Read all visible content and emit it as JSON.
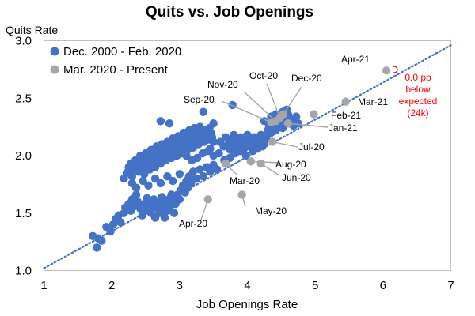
{
  "chart_data": {
    "type": "scatter",
    "title": "Quits vs. Job Openings",
    "ylabel": "Quits Rate",
    "xlabel": "Job Openings Rate",
    "xlim": [
      1,
      7
    ],
    "ylim": [
      1.0,
      3.0
    ],
    "x_ticks": [
      "1",
      "2",
      "3",
      "4",
      "5",
      "6",
      "7"
    ],
    "y_ticks": [
      "1.0",
      "1.5",
      "2.0",
      "2.5",
      "3.0"
    ],
    "legend_position": "top-left",
    "colors": {
      "history": "#4472c4",
      "recent": "#a6a6a6",
      "trend": "#4472c4",
      "note": "#ff0000"
    },
    "series": [
      {
        "name": "Dec. 2000 - Feb. 2020",
        "marker": "circle",
        "points": [
          [
            1.72,
            1.3
          ],
          [
            1.78,
            1.2
          ],
          [
            1.8,
            1.28
          ],
          [
            1.85,
            1.26
          ],
          [
            1.92,
            1.38
          ],
          [
            1.98,
            1.34
          ],
          [
            2.02,
            1.4
          ],
          [
            2.06,
            1.45
          ],
          [
            2.1,
            1.48
          ],
          [
            2.13,
            1.42
          ],
          [
            2.18,
            1.5
          ],
          [
            2.2,
            1.55
          ],
          [
            2.25,
            1.58
          ],
          [
            2.28,
            1.52
          ],
          [
            2.3,
            1.62
          ],
          [
            2.33,
            1.56
          ],
          [
            2.36,
            1.66
          ],
          [
            2.38,
            1.6
          ],
          [
            2.42,
            1.54
          ],
          [
            2.45,
            1.48
          ],
          [
            2.48,
            1.58
          ],
          [
            2.5,
            1.52
          ],
          [
            2.52,
            1.63
          ],
          [
            2.55,
            1.58
          ],
          [
            2.58,
            1.5
          ],
          [
            2.6,
            1.56
          ],
          [
            2.62,
            1.62
          ],
          [
            2.64,
            1.46
          ],
          [
            2.66,
            1.55
          ],
          [
            2.68,
            1.6
          ],
          [
            2.7,
            1.5
          ],
          [
            2.72,
            1.57
          ],
          [
            2.74,
            1.64
          ],
          [
            2.76,
            1.53
          ],
          [
            2.78,
            1.46
          ],
          [
            2.8,
            1.58
          ],
          [
            2.82,
            1.52
          ],
          [
            2.84,
            1.62
          ],
          [
            2.86,
            1.56
          ],
          [
            2.88,
            1.66
          ],
          [
            2.9,
            1.62
          ],
          [
            2.92,
            1.5
          ],
          [
            2.94,
            1.58
          ],
          [
            2.97,
            1.66
          ],
          [
            3.0,
            1.62
          ],
          [
            3.02,
            1.7
          ],
          [
            3.05,
            1.74
          ],
          [
            3.08,
            1.68
          ],
          [
            3.1,
            1.78
          ],
          [
            3.12,
            1.72
          ],
          [
            3.14,
            1.82
          ],
          [
            3.17,
            1.76
          ],
          [
            3.2,
            1.86
          ],
          [
            3.25,
            1.8
          ],
          [
            3.3,
            1.88
          ],
          [
            3.35,
            1.82
          ],
          [
            3.4,
            1.9
          ],
          [
            3.45,
            1.86
          ],
          [
            3.5,
            1.92
          ],
          [
            3.55,
            1.88
          ],
          [
            2.18,
            1.8
          ],
          [
            2.22,
            1.85
          ],
          [
            2.25,
            1.9
          ],
          [
            2.28,
            1.93
          ],
          [
            2.3,
            1.82
          ],
          [
            2.32,
            1.88
          ],
          [
            2.35,
            1.96
          ],
          [
            2.38,
            1.92
          ],
          [
            2.4,
            1.86
          ],
          [
            2.42,
            2.0
          ],
          [
            2.44,
            1.95
          ],
          [
            2.46,
            1.9
          ],
          [
            2.48,
            1.84
          ],
          [
            2.5,
            2.02
          ],
          [
            2.52,
            1.97
          ],
          [
            2.54,
            1.92
          ],
          [
            2.56,
            1.88
          ],
          [
            2.58,
            2.05
          ],
          [
            2.6,
            2.0
          ],
          [
            2.62,
            1.95
          ],
          [
            2.64,
            1.9
          ],
          [
            2.66,
            2.08
          ],
          [
            2.68,
            2.03
          ],
          [
            2.7,
            1.98
          ],
          [
            2.72,
            1.93
          ],
          [
            2.74,
            2.1
          ],
          [
            2.76,
            2.05
          ],
          [
            2.78,
            2.0
          ],
          [
            2.8,
            1.96
          ],
          [
            2.82,
            2.12
          ],
          [
            2.84,
            2.08
          ],
          [
            2.86,
            2.03
          ],
          [
            2.88,
            1.98
          ],
          [
            2.9,
            2.15
          ],
          [
            2.92,
            2.1
          ],
          [
            2.94,
            2.05
          ],
          [
            2.96,
            2.0
          ],
          [
            2.98,
            2.17
          ],
          [
            3.0,
            2.12
          ],
          [
            3.02,
            2.08
          ],
          [
            3.04,
            2.02
          ],
          [
            3.06,
            2.2
          ],
          [
            3.08,
            2.15
          ],
          [
            3.1,
            2.1
          ],
          [
            3.12,
            2.05
          ],
          [
            3.14,
            2.22
          ],
          [
            3.16,
            2.18
          ],
          [
            3.18,
            2.12
          ],
          [
            3.2,
            2.07
          ],
          [
            3.22,
            2.24
          ],
          [
            3.24,
            2.2
          ],
          [
            3.26,
            2.15
          ],
          [
            3.28,
            2.1
          ],
          [
            3.3,
            2.25
          ],
          [
            3.32,
            2.2
          ],
          [
            3.34,
            2.16
          ],
          [
            3.36,
            2.12
          ],
          [
            3.38,
            2.22
          ],
          [
            3.4,
            2.18
          ],
          [
            3.42,
            2.14
          ],
          [
            3.44,
            2.24
          ],
          [
            3.46,
            2.2
          ],
          [
            3.48,
            2.16
          ],
          [
            3.5,
            2.12
          ],
          [
            2.72,
            2.3
          ],
          [
            2.85,
            2.28
          ],
          [
            3.35,
            2.38
          ],
          [
            3.5,
            2.28
          ],
          [
            3.78,
            2.44
          ],
          [
            3.45,
            2.06
          ],
          [
            3.1,
            2.0
          ],
          [
            3.18,
            1.96
          ],
          [
            3.26,
            1.98
          ],
          [
            3.34,
            2.02
          ],
          [
            3.42,
            2.04
          ],
          [
            3.5,
            2.0
          ],
          [
            3.58,
            2.02
          ],
          [
            3.66,
            1.96
          ],
          [
            3.74,
            1.98
          ],
          [
            3.82,
            2.02
          ],
          [
            3.9,
            2.04
          ],
          [
            3.98,
            2.0
          ],
          [
            2.3,
            1.76
          ],
          [
            2.36,
            1.72
          ],
          [
            2.46,
            1.78
          ],
          [
            2.54,
            1.74
          ],
          [
            2.64,
            1.8
          ],
          [
            2.72,
            1.76
          ],
          [
            2.82,
            1.82
          ],
          [
            2.9,
            1.78
          ],
          [
            3.0,
            1.84
          ],
          [
            3.6,
            2.12
          ],
          [
            3.65,
            2.08
          ],
          [
            3.68,
            2.16
          ],
          [
            3.72,
            2.1
          ],
          [
            3.75,
            2.05
          ],
          [
            3.78,
            2.14
          ],
          [
            3.8,
            2.18
          ],
          [
            3.82,
            2.08
          ],
          [
            3.85,
            2.12
          ],
          [
            3.88,
            2.04
          ],
          [
            3.9,
            2.16
          ],
          [
            3.92,
            2.1
          ],
          [
            3.95,
            2.06
          ],
          [
            3.98,
            2.14
          ],
          [
            4.0,
            2.18
          ],
          [
            4.02,
            2.08
          ],
          [
            4.05,
            2.12
          ],
          [
            4.08,
            2.04
          ],
          [
            4.1,
            2.16
          ],
          [
            4.12,
            2.1
          ],
          [
            4.15,
            2.06
          ],
          [
            4.18,
            2.14
          ],
          [
            4.2,
            2.18
          ],
          [
            4.22,
            2.08
          ],
          [
            4.25,
            2.12
          ],
          [
            4.28,
            2.16
          ],
          [
            4.3,
            2.22
          ],
          [
            4.32,
            2.26
          ],
          [
            4.35,
            2.2
          ],
          [
            4.38,
            2.24
          ],
          [
            4.4,
            2.28
          ],
          [
            4.42,
            2.22
          ],
          [
            4.45,
            2.3
          ],
          [
            4.48,
            2.26
          ],
          [
            4.5,
            2.32
          ],
          [
            4.52,
            2.24
          ],
          [
            4.55,
            2.34
          ],
          [
            4.58,
            2.3
          ],
          [
            4.6,
            2.36
          ],
          [
            4.62,
            2.28
          ],
          [
            4.65,
            2.32
          ],
          [
            4.68,
            2.26
          ],
          [
            4.7,
            2.3
          ],
          [
            4.72,
            2.34
          ],
          [
            4.75,
            2.28
          ],
          [
            4.25,
            2.3
          ],
          [
            4.35,
            2.34
          ],
          [
            4.42,
            2.36
          ],
          [
            4.58,
            2.4
          ],
          [
            4.52,
            2.38
          ]
        ]
      },
      {
        "name": "Mar. 2020 - Present",
        "marker": "circle",
        "points": [
          {
            "label": "Mar-20",
            "x": 3.68,
            "y": 1.93
          },
          {
            "label": "Apr-20",
            "x": 3.42,
            "y": 1.62
          },
          {
            "label": "May-20",
            "x": 3.92,
            "y": 1.66
          },
          {
            "label": "Jun-20",
            "x": 4.2,
            "y": 1.93
          },
          {
            "label": "Jul-20",
            "x": 4.37,
            "y": 2.12
          },
          {
            "label": "Aug-20",
            "x": 4.05,
            "y": 1.95
          },
          {
            "label": "Sep-20",
            "x": 4.35,
            "y": 2.29
          },
          {
            "label": "Oct-20",
            "x": 4.48,
            "y": 2.33
          },
          {
            "label": "Nov-20",
            "x": 4.42,
            "y": 2.3
          },
          {
            "label": "Dec-20",
            "x": 4.53,
            "y": 2.36
          },
          {
            "label": "Jan-21",
            "x": 4.6,
            "y": 2.28
          },
          {
            "label": "Feb-21",
            "x": 4.98,
            "y": 2.36
          },
          {
            "label": "Mar-21",
            "x": 5.45,
            "y": 2.47
          },
          {
            "label": "Apr-21",
            "x": 6.05,
            "y": 2.74
          }
        ]
      }
    ],
    "trend_line": {
      "style": "dotted",
      "from": [
        1.0,
        1.02
      ],
      "to": [
        7.0,
        2.96
      ]
    },
    "annotation": {
      "lines": [
        "0.0 pp",
        "below",
        "expected",
        "(24k)"
      ]
    }
  }
}
